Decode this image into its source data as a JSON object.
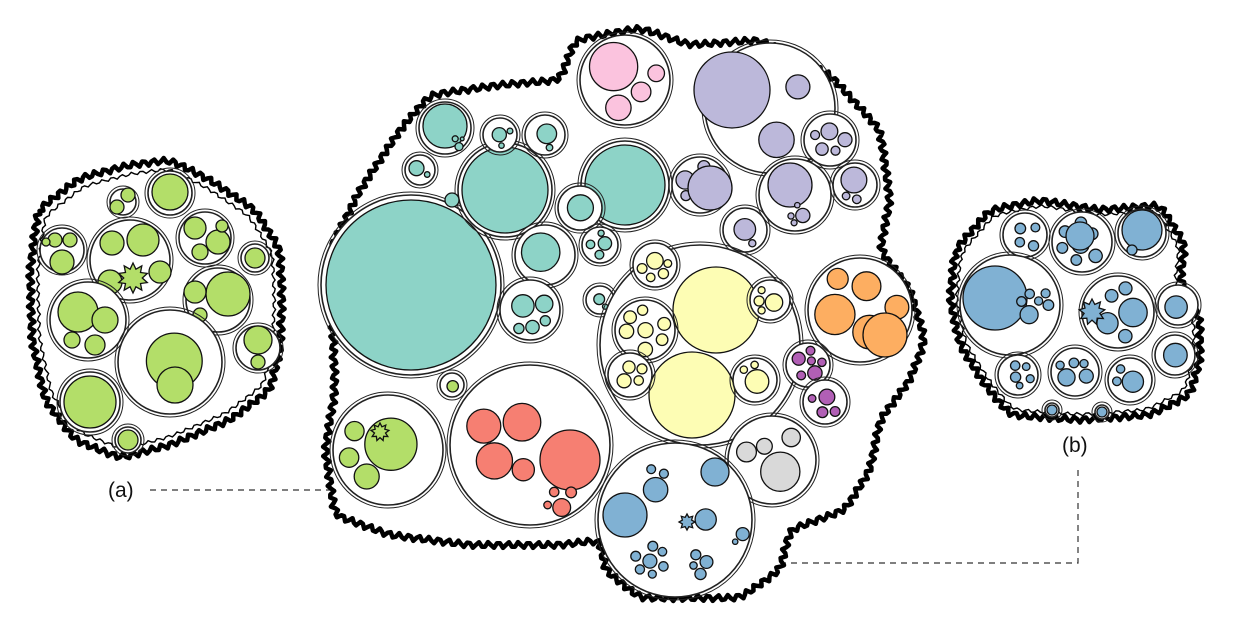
{
  "labels": {
    "a": "(a)",
    "b": "(b)"
  },
  "palette": {
    "teal": "#8dd3c7",
    "pink": "#fbc3de",
    "lavender": "#bcb8da",
    "yellow": "#fdfdb4",
    "orange": "#fdae61",
    "purple": "#b15fb5",
    "red": "#f67f72",
    "green": "#b3de69",
    "gray": "#d9d9d9",
    "blue": "#80b1d3"
  },
  "node_glyph": "star-node"
}
